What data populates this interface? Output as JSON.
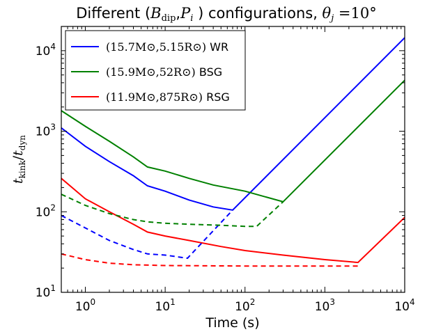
{
  "chart_data": {
    "type": "line",
    "title": "Different (B_dip, P_i ) configurations, θ_j = 10°",
    "xlabel": "Time (s)",
    "ylabel": "t_kink/t_dyn",
    "xscale": "log",
    "yscale": "log",
    "xlim": [
      0.5,
      10000
    ],
    "ylim": [
      10,
      20000
    ],
    "xtick_labels": [
      {
        "value": 1,
        "base": "10",
        "exp": "0"
      },
      {
        "value": 10,
        "base": "10",
        "exp": "1"
      },
      {
        "value": 100,
        "base": "10",
        "exp": "2"
      },
      {
        "value": 1000,
        "base": "10",
        "exp": "3"
      },
      {
        "value": 10000,
        "base": "10",
        "exp": "4"
      }
    ],
    "ytick_labels": [
      {
        "value": 10,
        "base": "10",
        "exp": "1"
      },
      {
        "value": 100,
        "base": "10",
        "exp": "2"
      },
      {
        "value": 1000,
        "base": "10",
        "exp": "3"
      },
      {
        "value": 10000,
        "base": "10",
        "exp": "4"
      }
    ],
    "grid": false,
    "legend_position": "top-left",
    "series": [
      {
        "name": "(15.7M⊙,5.15R⊙) WR",
        "color": "#0000ff",
        "style": "solid",
        "x": [
          0.5,
          1,
          2,
          4,
          6,
          10,
          20,
          40,
          70,
          10000
        ],
        "y": [
          1100,
          650,
          420,
          280,
          210,
          180,
          140,
          115,
          105,
          14500
        ]
      },
      {
        "name": "(15.9M⊙,52R⊙) BSG",
        "color": "#008000",
        "style": "solid",
        "x": [
          0.5,
          1,
          2,
          4,
          6,
          10,
          20,
          40,
          100,
          300,
          10000
        ],
        "y": [
          1800,
          1150,
          750,
          480,
          360,
          320,
          260,
          215,
          180,
          133,
          4300
        ]
      },
      {
        "name": "(11.9M⊙,875R⊙) RSG",
        "color": "#ff0000",
        "style": "solid",
        "x": [
          0.5,
          1,
          2,
          4,
          6,
          10,
          20,
          50,
          100,
          300,
          1000,
          2600,
          10000
        ],
        "y": [
          260,
          145,
          100,
          70,
          56,
          50,
          44,
          37,
          33,
          29,
          25.5,
          23.5,
          85
        ]
      },
      {
        "color": "#0000ff",
        "style": "dashed",
        "x": [
          0.5,
          1,
          2,
          4,
          6,
          10,
          19,
          70
        ],
        "y": [
          90,
          63,
          44,
          34,
          30,
          29,
          26.5,
          105
        ]
      },
      {
        "color": "#008000",
        "style": "dashed",
        "x": [
          0.5,
          1,
          2,
          4,
          6,
          10,
          20,
          50,
          100,
          140,
          300
        ],
        "y": [
          165,
          120,
          95,
          80,
          75,
          72,
          70,
          68,
          66,
          66,
          133
        ]
      },
      {
        "color": "#ff0000",
        "style": "dashed",
        "x": [
          0.5,
          1,
          2,
          4,
          10,
          100,
          1000,
          2600
        ],
        "y": [
          30,
          25.5,
          23,
          22,
          21.5,
          21.2,
          21.2,
          21.2
        ]
      }
    ],
    "legend": [
      {
        "label_math": "(15.7M⊙,5.15R⊙)",
        "label_text": "WR",
        "color": "#0000ff"
      },
      {
        "label_math": "(15.9M⊙,52R⊙)",
        "label_text": "BSG",
        "color": "#008000"
      },
      {
        "label_math": "(11.9M⊙,875R⊙)",
        "label_text": "RSG",
        "color": "#ff0000"
      }
    ]
  }
}
